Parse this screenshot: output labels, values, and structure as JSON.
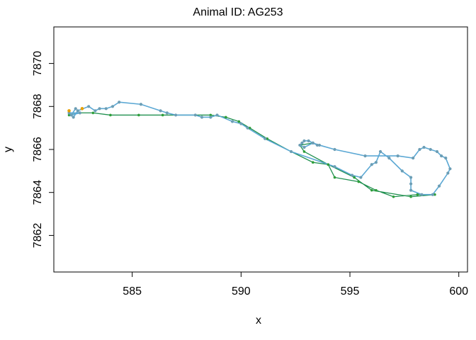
{
  "chart_data": {
    "type": "line",
    "title": "Animal ID: AG253",
    "xlabel": "x",
    "ylabel": "y",
    "xlim": [
      581.4,
      600.4
    ],
    "ylim": [
      7860.3,
      7871.7
    ],
    "xticks": [
      585,
      590,
      595,
      600
    ],
    "yticks": [
      7862,
      7864,
      7866,
      7868,
      7870
    ],
    "grid": false,
    "legend": "none",
    "colors": {
      "blue": "#5BA8D4",
      "green": "#1E8F4E",
      "green_point": "#2E9E3A",
      "orange": "#E69F00",
      "blue_point": "#6C9EB5"
    },
    "series": [
      {
        "color": "#5BA8D4",
        "points": [
          [
            582.4,
            7867.9
          ],
          [
            582.2,
            7867.6
          ],
          [
            582.6,
            7867.7
          ],
          [
            582.1,
            7867.7
          ],
          [
            582.3,
            7867.5
          ],
          [
            582.5,
            7867.8
          ],
          [
            583.0,
            7868.0
          ],
          [
            583.3,
            7867.8
          ],
          [
            583.5,
            7867.9
          ],
          [
            583.8,
            7867.9
          ],
          [
            584.1,
            7868.0
          ],
          [
            584.4,
            7868.2
          ],
          [
            585.4,
            7868.1
          ],
          [
            586.3,
            7867.8
          ],
          [
            586.6,
            7867.7
          ],
          [
            587.0,
            7867.6
          ],
          [
            587.9,
            7867.6
          ],
          [
            588.2,
            7867.5
          ],
          [
            588.6,
            7867.5
          ],
          [
            588.9,
            7867.6
          ],
          [
            589.6,
            7867.3
          ],
          [
            590.0,
            7867.2
          ],
          [
            590.3,
            7867.0
          ],
          [
            591.1,
            7866.5
          ],
          [
            592.3,
            7865.9
          ],
          [
            594.3,
            7865.2
          ],
          [
            595.1,
            7864.8
          ],
          [
            595.5,
            7864.7
          ],
          [
            596.0,
            7865.3
          ],
          [
            596.2,
            7865.4
          ],
          [
            596.4,
            7865.9
          ],
          [
            596.8,
            7865.6
          ],
          [
            597.4,
            7865.0
          ],
          [
            597.8,
            7864.7
          ],
          [
            597.8,
            7864.4
          ],
          [
            597.8,
            7864.1
          ],
          [
            598.3,
            7863.9
          ],
          [
            598.8,
            7863.9
          ],
          [
            599.1,
            7864.3
          ],
          [
            599.5,
            7864.9
          ],
          [
            599.6,
            7865.1
          ],
          [
            599.4,
            7865.6
          ],
          [
            599.2,
            7865.7
          ],
          [
            599.0,
            7865.9
          ],
          [
            598.7,
            7866.0
          ],
          [
            598.4,
            7866.1
          ],
          [
            598.2,
            7866.0
          ],
          [
            597.9,
            7865.6
          ],
          [
            597.2,
            7865.7
          ],
          [
            595.7,
            7865.7
          ],
          [
            594.3,
            7866.0
          ],
          [
            593.6,
            7866.2
          ],
          [
            593.3,
            7866.3
          ],
          [
            593.1,
            7866.4
          ],
          [
            592.9,
            7866.4
          ],
          [
            592.8,
            7866.3
          ],
          [
            592.7,
            7866.2
          ],
          [
            592.9,
            7866.1
          ],
          [
            593.3,
            7866.3
          ],
          [
            593.5,
            7866.2
          ]
        ]
      },
      {
        "color": "#1E8F4E",
        "points": [
          [
            582.1,
            7867.6
          ],
          [
            582.6,
            7867.7
          ],
          [
            583.2,
            7867.7
          ],
          [
            584.0,
            7867.6
          ],
          [
            585.3,
            7867.6
          ],
          [
            586.4,
            7867.6
          ],
          [
            587.9,
            7867.6
          ],
          [
            588.6,
            7867.6
          ],
          [
            589.3,
            7867.5
          ],
          [
            589.9,
            7867.3
          ],
          [
            590.4,
            7867.0
          ],
          [
            591.2,
            7866.5
          ],
          [
            592.3,
            7865.9
          ],
          [
            593.3,
            7865.4
          ],
          [
            594.0,
            7865.3
          ],
          [
            594.3,
            7864.7
          ],
          [
            595.4,
            7864.5
          ],
          [
            596.2,
            7864.1
          ],
          [
            597.0,
            7863.8
          ],
          [
            598.1,
            7863.9
          ],
          [
            598.9,
            7863.9
          ],
          [
            597.8,
            7863.8
          ],
          [
            596.0,
            7864.1
          ],
          [
            595.2,
            7864.7
          ],
          [
            594.0,
            7865.3
          ],
          [
            592.9,
            7865.9
          ],
          [
            592.7,
            7866.2
          ],
          [
            593.3,
            7866.3
          ]
        ]
      }
    ],
    "markers": [
      {
        "color": "#E69F00",
        "x": 582.1,
        "y": 7867.8
      },
      {
        "color": "#E69F00",
        "x": 582.7,
        "y": 7867.9
      }
    ]
  }
}
